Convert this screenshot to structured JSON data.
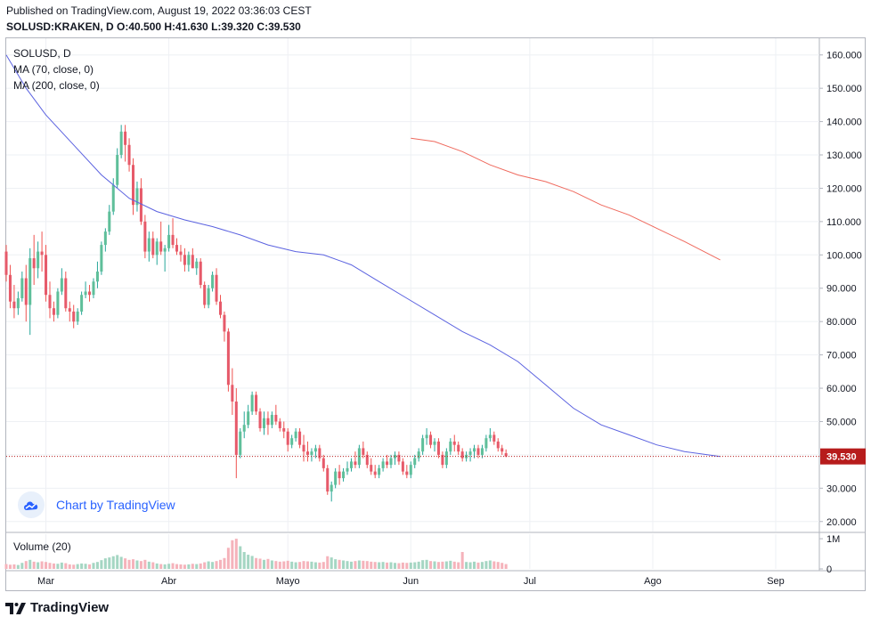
{
  "header": {
    "published": "Published on TradingView.com, August 19, 2022 03:36:03 CEST",
    "ohlc": "SOLUSD:KRAKEN, D  O:40.500 H:41.630 L:39.320 C:39.530"
  },
  "legend": {
    "symbol": "SOLUSD, D",
    "ma70": "MA (70, close, 0)",
    "ma200": "MA (200, close, 0)",
    "volume": "Volume (20)"
  },
  "watermark": "Chart by TradingView",
  "logo": "TradingView",
  "colors": {
    "up": "#26a69a",
    "down": "#ef5350",
    "up_fill": "#5fbf9a",
    "down_fill": "#e65a6a",
    "vol_up": "#a5d6c3",
    "vol_down": "#f5b3bb",
    "ma70": "#5b62e0",
    "ma200": "#ef6a5e",
    "last_price": "#b71c1c"
  },
  "chart_data": {
    "type": "candlestick",
    "symbol": "SOLUSD",
    "interval": "D",
    "price_axis": {
      "range": [
        17,
        165
      ],
      "ticks": [
        "20.000",
        "30.000",
        "40.000",
        "50.000",
        "60.000",
        "70.000",
        "80.000",
        "90.000",
        "100.000",
        "110.000",
        "120.000",
        "130.000",
        "140.000",
        "150.000",
        "160.000"
      ]
    },
    "volume_axis": {
      "range": [
        0,
        1150000
      ],
      "ticks": [
        "1M",
        "0"
      ]
    },
    "last_price": {
      "value": 39.53,
      "label": "39.530"
    },
    "x_axis": {
      "range": [
        "2022-02-19",
        "2022-09-12"
      ],
      "ticks": [
        {
          "date": "2022-03-01",
          "label": "Mar"
        },
        {
          "date": "2022-04-01",
          "label": "Abr"
        },
        {
          "date": "2022-05-01",
          "label": "Mayo"
        },
        {
          "date": "2022-06-01",
          "label": "Jun"
        },
        {
          "date": "2022-07-01",
          "label": "Jul"
        },
        {
          "date": "2022-08-01",
          "label": "Ago"
        },
        {
          "date": "2022-09-01",
          "label": "Sep"
        }
      ]
    },
    "start_date": "2022-02-19",
    "candles": [
      [
        101,
        103,
        92,
        94,
        160000
      ],
      [
        94,
        97,
        84,
        86,
        140000
      ],
      [
        86,
        91,
        81,
        84,
        150000
      ],
      [
        84,
        89,
        82,
        87,
        130000
      ],
      [
        87,
        95,
        86,
        93,
        200000
      ],
      [
        93,
        97,
        80,
        85,
        260000
      ],
      [
        85,
        102,
        76,
        99,
        300000
      ],
      [
        99,
        106,
        91,
        96,
        240000
      ],
      [
        96,
        104,
        93,
        101,
        220000
      ],
      [
        101,
        107,
        95,
        100,
        250000
      ],
      [
        100,
        103,
        86,
        88,
        230000
      ],
      [
        88,
        92,
        81,
        84,
        200000
      ],
      [
        84,
        86,
        80,
        82,
        180000
      ],
      [
        82,
        90,
        81,
        89,
        170000
      ],
      [
        89,
        96,
        88,
        93,
        210000
      ],
      [
        93,
        95,
        83,
        84,
        190000
      ],
      [
        84,
        86,
        80,
        83,
        150000
      ],
      [
        83,
        85,
        78,
        80,
        140000
      ],
      [
        80,
        84,
        79,
        83,
        160000
      ],
      [
        83,
        89,
        82,
        88,
        180000
      ],
      [
        88,
        92,
        87,
        89,
        170000
      ],
      [
        89,
        91,
        86,
        88,
        150000
      ],
      [
        88,
        93,
        87,
        92,
        200000
      ],
      [
        92,
        98,
        90,
        95,
        230000
      ],
      [
        95,
        104,
        94,
        103,
        290000
      ],
      [
        103,
        108,
        101,
        107,
        350000
      ],
      [
        107,
        115,
        106,
        113,
        380000
      ],
      [
        113,
        123,
        112,
        121,
        420000
      ],
      [
        121,
        132,
        120,
        130,
        460000
      ],
      [
        130,
        139,
        129,
        137,
        400000
      ],
      [
        137,
        139,
        128,
        133,
        350000
      ],
      [
        133,
        135,
        125,
        127,
        300000
      ],
      [
        127,
        129,
        112,
        115,
        320000
      ],
      [
        115,
        122,
        113,
        120,
        280000
      ],
      [
        120,
        123,
        109,
        110,
        260000
      ],
      [
        110,
        112,
        99,
        101,
        300000
      ],
      [
        101,
        107,
        98,
        105,
        240000
      ],
      [
        105,
        107,
        99,
        100,
        220000
      ],
      [
        100,
        105,
        97,
        104,
        180000
      ],
      [
        104,
        110,
        100,
        101,
        160000
      ],
      [
        101,
        103,
        95,
        102,
        150000
      ],
      [
        102,
        109,
        101,
        106,
        170000
      ],
      [
        106,
        111,
        102,
        103,
        190000
      ],
      [
        103,
        105,
        100,
        101,
        160000
      ],
      [
        101,
        103,
        98,
        100,
        150000
      ],
      [
        100,
        102,
        95,
        97,
        140000
      ],
      [
        97,
        101,
        95,
        100,
        150000
      ],
      [
        100,
        102,
        96,
        96,
        170000
      ],
      [
        96,
        99,
        94,
        98,
        160000
      ],
      [
        98,
        99,
        90,
        91,
        180000
      ],
      [
        91,
        92,
        84,
        85,
        220000
      ],
      [
        85,
        91,
        84,
        90,
        250000
      ],
      [
        90,
        95,
        89,
        94,
        230000
      ],
      [
        94,
        96,
        85,
        86,
        260000
      ],
      [
        86,
        88,
        81,
        82,
        300000
      ],
      [
        82,
        83,
        74,
        77,
        360000
      ],
      [
        77,
        78,
        59,
        61,
        700000
      ],
      [
        61,
        66,
        52,
        56,
        950000
      ],
      [
        56,
        60,
        33,
        40,
        1000000
      ],
      [
        40,
        48,
        39,
        47,
        750000
      ],
      [
        47,
        53,
        45,
        49,
        560000
      ],
      [
        49,
        55,
        48,
        53,
        470000
      ],
      [
        53,
        59,
        52,
        58,
        430000
      ],
      [
        58,
        59,
        52,
        53,
        360000
      ],
      [
        53,
        54,
        47,
        48,
        340000
      ],
      [
        48,
        53,
        46,
        51,
        300000
      ],
      [
        51,
        53,
        46,
        49,
        330000
      ],
      [
        49,
        53,
        48,
        52,
        280000
      ],
      [
        52,
        55,
        49,
        50,
        260000
      ],
      [
        50,
        51,
        47,
        48,
        240000
      ],
      [
        48,
        50,
        45,
        47,
        250000
      ],
      [
        47,
        48,
        41,
        43,
        270000
      ],
      [
        43,
        46,
        42,
        45,
        240000
      ],
      [
        45,
        48,
        44,
        47,
        220000
      ],
      [
        47,
        48,
        42,
        43,
        230000
      ],
      [
        43,
        46,
        38,
        41,
        260000
      ],
      [
        41,
        44,
        38,
        40,
        250000
      ],
      [
        40,
        42,
        38,
        41,
        240000
      ],
      [
        41,
        43,
        39,
        42,
        220000
      ],
      [
        42,
        43,
        38,
        39,
        210000
      ],
      [
        39,
        40,
        35,
        36,
        230000
      ],
      [
        36,
        37,
        28,
        29,
        420000
      ],
      [
        29,
        32,
        26,
        31,
        380000
      ],
      [
        31,
        36,
        30,
        35,
        320000
      ],
      [
        35,
        37,
        31,
        33,
        300000
      ],
      [
        33,
        36,
        32,
        35,
        280000
      ],
      [
        35,
        38,
        34,
        36,
        260000
      ],
      [
        36,
        39,
        35,
        38,
        240000
      ],
      [
        38,
        41,
        36,
        37,
        260000
      ],
      [
        37,
        43,
        36,
        42,
        280000
      ],
      [
        42,
        44,
        39,
        40,
        270000
      ],
      [
        40,
        41,
        36,
        37,
        260000
      ],
      [
        37,
        39,
        34,
        35,
        240000
      ],
      [
        35,
        37,
        33,
        34,
        230000
      ],
      [
        34,
        37,
        33,
        36,
        220000
      ],
      [
        36,
        39,
        35,
        38,
        230000
      ],
      [
        38,
        40,
        36,
        37,
        210000
      ],
      [
        37,
        40,
        36,
        39,
        220000
      ],
      [
        39,
        41,
        37,
        40,
        200000
      ],
      [
        40,
        41,
        37,
        38,
        190000
      ],
      [
        38,
        39,
        34,
        35,
        210000
      ],
      [
        35,
        37,
        33,
        34,
        200000
      ],
      [
        34,
        38,
        33,
        37,
        210000
      ],
      [
        37,
        40,
        36,
        39,
        220000
      ],
      [
        39,
        42,
        38,
        41,
        240000
      ],
      [
        41,
        46,
        40,
        45,
        290000
      ],
      [
        45,
        48,
        43,
        46,
        300000
      ],
      [
        46,
        47,
        42,
        43,
        260000
      ],
      [
        43,
        45,
        41,
        44,
        250000
      ],
      [
        44,
        45,
        39,
        40,
        230000
      ],
      [
        40,
        41,
        36,
        37,
        240000
      ],
      [
        37,
        42,
        36,
        41,
        250000
      ],
      [
        41,
        45,
        40,
        44,
        270000
      ],
      [
        44,
        46,
        41,
        43,
        240000
      ],
      [
        43,
        44,
        40,
        41,
        220000
      ],
      [
        41,
        42,
        38,
        39,
        560000
      ],
      [
        39,
        41,
        38,
        40,
        230000
      ],
      [
        40,
        42,
        38,
        41,
        220000
      ],
      [
        41,
        43,
        39,
        42,
        240000
      ],
      [
        42,
        43,
        39,
        40,
        210000
      ],
      [
        40,
        43,
        39,
        42,
        230000
      ],
      [
        42,
        46,
        41,
        45,
        260000
      ],
      [
        45,
        48,
        44,
        46,
        280000
      ],
      [
        46,
        47,
        43,
        44,
        250000
      ],
      [
        44,
        45,
        41,
        42,
        230000
      ],
      [
        42,
        43,
        40,
        41,
        200000
      ],
      [
        40.5,
        41.63,
        39.32,
        39.53,
        160000
      ]
    ],
    "ma70": [
      [
        "2022-02-19",
        160
      ],
      [
        "2022-02-24",
        150
      ],
      [
        "2022-03-01",
        142
      ],
      [
        "2022-03-08",
        133
      ],
      [
        "2022-03-15",
        124
      ],
      [
        "2022-03-22",
        117
      ],
      [
        "2022-03-29",
        113
      ],
      [
        "2022-04-05",
        110.5
      ],
      [
        "2022-04-12",
        108.5
      ],
      [
        "2022-04-19",
        106
      ],
      [
        "2022-04-26",
        103
      ],
      [
        "2022-05-03",
        101
      ],
      [
        "2022-05-10",
        100
      ],
      [
        "2022-05-17",
        97
      ],
      [
        "2022-05-24",
        92
      ],
      [
        "2022-05-31",
        87
      ],
      [
        "2022-06-07",
        82
      ],
      [
        "2022-06-14",
        77
      ],
      [
        "2022-06-21",
        73
      ],
      [
        "2022-06-28",
        68
      ],
      [
        "2022-07-05",
        61
      ],
      [
        "2022-07-12",
        54
      ],
      [
        "2022-07-19",
        49
      ],
      [
        "2022-07-26",
        46
      ],
      [
        "2022-08-02",
        43
      ],
      [
        "2022-08-09",
        41
      ],
      [
        "2022-08-18",
        39.5
      ]
    ],
    "ma200": [
      [
        "2022-06-01",
        135
      ],
      [
        "2022-06-07",
        134
      ],
      [
        "2022-06-14",
        131
      ],
      [
        "2022-06-21",
        127
      ],
      [
        "2022-06-28",
        124
      ],
      [
        "2022-07-05",
        122
      ],
      [
        "2022-07-12",
        119
      ],
      [
        "2022-07-19",
        115
      ],
      [
        "2022-07-26",
        112
      ],
      [
        "2022-08-02",
        108
      ],
      [
        "2022-08-09",
        104
      ],
      [
        "2022-08-18",
        98.5
      ]
    ]
  }
}
